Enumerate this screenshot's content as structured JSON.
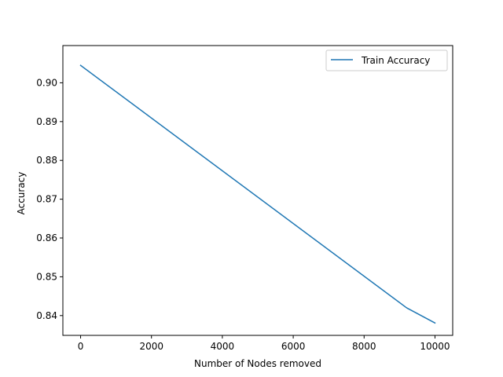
{
  "chart_data": {
    "type": "line",
    "xlabel": "Number of Nodes removed",
    "ylabel": "Accuracy",
    "xlim": [
      -500,
      10500
    ],
    "ylim": [
      0.8349,
      0.9096
    ],
    "x_ticks": [
      0,
      2000,
      4000,
      6000,
      8000,
      10000
    ],
    "y_ticks": [
      0.84,
      0.85,
      0.86,
      0.87,
      0.88,
      0.89,
      0.9
    ],
    "x_tick_labels": [
      "0",
      "2000",
      "4000",
      "6000",
      "8000",
      "10000"
    ],
    "y_tick_labels": [
      "0.84",
      "0.85",
      "0.86",
      "0.87",
      "0.88",
      "0.89",
      "0.90"
    ],
    "grid": false,
    "legend_position": "top-right",
    "series": [
      {
        "name": "Train Accuracy",
        "color": "#1f77b4",
        "x": [
          0,
          9200,
          10000
        ],
        "y": [
          0.9045,
          0.842,
          0.8381
        ]
      }
    ]
  }
}
